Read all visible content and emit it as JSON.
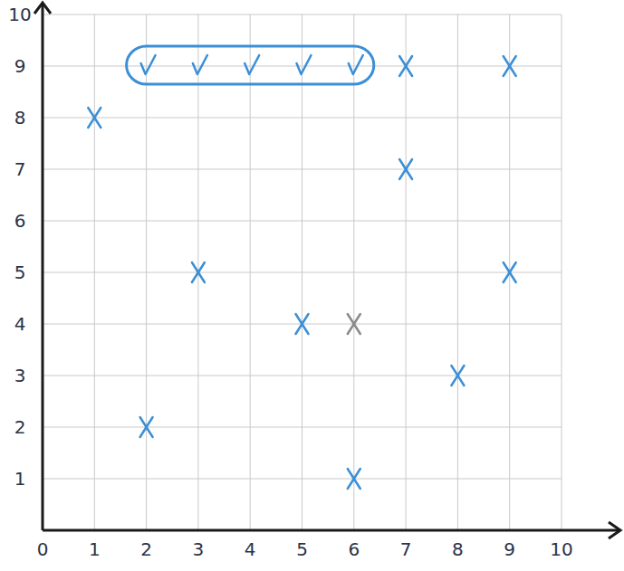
{
  "chart_data": {
    "type": "scatter",
    "xlim": [
      0,
      10
    ],
    "ylim": [
      0,
      10
    ],
    "xticks": [
      0,
      1,
      2,
      3,
      4,
      5,
      6,
      7,
      8,
      9,
      10
    ],
    "yticks": [
      1,
      2,
      3,
      4,
      5,
      6,
      7,
      8,
      9,
      10
    ],
    "grid": true,
    "series": [
      {
        "marker": "x",
        "color": "#3b8fd6",
        "x": [
          1,
          2,
          3,
          5,
          6,
          7,
          7,
          8,
          9,
          9
        ],
        "values": [
          8,
          2,
          5,
          4,
          1,
          9,
          7,
          3,
          9,
          5
        ]
      },
      {
        "marker": "x",
        "color": "#8a8a8a",
        "x": [
          6
        ],
        "values": [
          4
        ]
      },
      {
        "marker": "check",
        "color": "#3b8fd6",
        "x": [
          2,
          3,
          4,
          5,
          6
        ],
        "values": [
          9,
          9,
          9,
          9,
          9
        ]
      }
    ]
  }
}
